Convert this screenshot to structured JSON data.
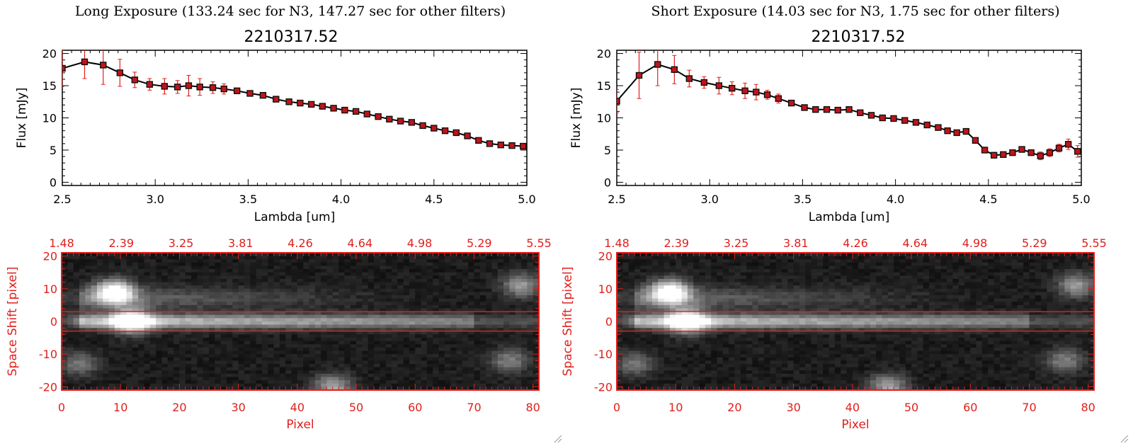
{
  "panels": [
    {
      "key": "long",
      "title": "Long Exposure (133.24 sec for N3, 147.27 sec for other filters)",
      "object_id": "2210317.52"
    },
    {
      "key": "short",
      "title": "Short Exposure (14.03 sec for N3, 1.75 sec for other filters)",
      "object_id": "2210317.52"
    }
  ],
  "chart_data": [
    {
      "type": "line",
      "panel": "long",
      "title": "2210317.52",
      "xlabel": "Lambda [um]",
      "ylabel": "Flux [mJy]",
      "xlim": [
        2.5,
        5.0
      ],
      "ylim": [
        -0.5,
        20.5
      ],
      "xticks": [
        "2.5",
        "3.0",
        "3.5",
        "4.0",
        "4.5",
        "5.0"
      ],
      "yticks": [
        "0",
        "5",
        "10",
        "15",
        "20"
      ],
      "line_color": "#000000",
      "marker_color": "#c0141a",
      "errorbar_color": "#e0201c",
      "points": [
        {
          "x": 2.5,
          "y": 17.7,
          "err": 2.8
        },
        {
          "x": 2.62,
          "y": 18.7,
          "err": 2.6
        },
        {
          "x": 2.72,
          "y": 18.2,
          "err": 3.0
        },
        {
          "x": 2.81,
          "y": 17.0,
          "err": 2.1
        },
        {
          "x": 2.89,
          "y": 15.9,
          "err": 1.2
        },
        {
          "x": 2.97,
          "y": 15.2,
          "err": 0.9
        },
        {
          "x": 3.05,
          "y": 14.9,
          "err": 1.2
        },
        {
          "x": 3.12,
          "y": 14.8,
          "err": 1.0
        },
        {
          "x": 3.18,
          "y": 15.0,
          "err": 1.6
        },
        {
          "x": 3.24,
          "y": 14.8,
          "err": 1.3
        },
        {
          "x": 3.31,
          "y": 14.7,
          "err": 0.9
        },
        {
          "x": 3.37,
          "y": 14.5,
          "err": 0.8
        },
        {
          "x": 3.44,
          "y": 14.2,
          "err": 0.4
        },
        {
          "x": 3.51,
          "y": 13.8,
          "err": 0.3
        },
        {
          "x": 3.58,
          "y": 13.5,
          "err": 0.3
        },
        {
          "x": 3.65,
          "y": 12.9,
          "err": 0.2
        },
        {
          "x": 3.72,
          "y": 12.5,
          "err": 0.2
        },
        {
          "x": 3.78,
          "y": 12.3,
          "err": 0.2
        },
        {
          "x": 3.84,
          "y": 12.1,
          "err": 0.2
        },
        {
          "x": 3.9,
          "y": 11.8,
          "err": 0.2
        },
        {
          "x": 3.96,
          "y": 11.5,
          "err": 0.2
        },
        {
          "x": 4.02,
          "y": 11.2,
          "err": 0.2
        },
        {
          "x": 4.08,
          "y": 11.0,
          "err": 0.2
        },
        {
          "x": 4.14,
          "y": 10.6,
          "err": 0.2
        },
        {
          "x": 4.2,
          "y": 10.2,
          "err": 0.2
        },
        {
          "x": 4.26,
          "y": 9.8,
          "err": 0.2
        },
        {
          "x": 4.32,
          "y": 9.5,
          "err": 0.2
        },
        {
          "x": 4.38,
          "y": 9.3,
          "err": 0.2
        },
        {
          "x": 4.44,
          "y": 8.8,
          "err": 0.2
        },
        {
          "x": 4.5,
          "y": 8.4,
          "err": 0.2
        },
        {
          "x": 4.56,
          "y": 8.0,
          "err": 0.2
        },
        {
          "x": 4.62,
          "y": 7.7,
          "err": 0.2
        },
        {
          "x": 4.68,
          "y": 7.2,
          "err": 0.2
        },
        {
          "x": 4.74,
          "y": 6.5,
          "err": 0.2
        },
        {
          "x": 4.8,
          "y": 6.0,
          "err": 0.2
        },
        {
          "x": 4.86,
          "y": 5.8,
          "err": 0.2
        },
        {
          "x": 4.92,
          "y": 5.7,
          "err": 0.2
        },
        {
          "x": 4.98,
          "y": 5.6,
          "err": 0.2
        }
      ]
    },
    {
      "type": "line",
      "panel": "short",
      "title": "2210317.52",
      "xlabel": "Lambda [um]",
      "ylabel": "Flux [mJy]",
      "xlim": [
        2.5,
        5.0
      ],
      "ylim": [
        -0.5,
        20.5
      ],
      "xticks": [
        "2.5",
        "3.0",
        "3.5",
        "4.0",
        "4.5",
        "5.0"
      ],
      "yticks": [
        "0",
        "5",
        "10",
        "15",
        "20"
      ],
      "line_color": "#000000",
      "marker_color": "#c0141a",
      "errorbar_color": "#e0201c",
      "points": [
        {
          "x": 2.5,
          "y": 12.6,
          "err": 1.8
        },
        {
          "x": 2.62,
          "y": 16.6,
          "err": 3.6
        },
        {
          "x": 2.72,
          "y": 18.3,
          "err": 3.3
        },
        {
          "x": 2.81,
          "y": 17.5,
          "err": 2.2
        },
        {
          "x": 2.89,
          "y": 16.1,
          "err": 1.3
        },
        {
          "x": 2.97,
          "y": 15.5,
          "err": 0.9
        },
        {
          "x": 3.05,
          "y": 15.0,
          "err": 1.3
        },
        {
          "x": 3.12,
          "y": 14.6,
          "err": 1.0
        },
        {
          "x": 3.19,
          "y": 14.2,
          "err": 1.2
        },
        {
          "x": 3.25,
          "y": 14.0,
          "err": 1.2
        },
        {
          "x": 3.31,
          "y": 13.6,
          "err": 0.7
        },
        {
          "x": 3.37,
          "y": 13.0,
          "err": 0.7
        },
        {
          "x": 3.44,
          "y": 12.3,
          "err": 0.4
        },
        {
          "x": 3.51,
          "y": 11.6,
          "err": 0.3
        },
        {
          "x": 3.57,
          "y": 11.3,
          "err": 0.3
        },
        {
          "x": 3.63,
          "y": 11.3,
          "err": 0.3
        },
        {
          "x": 3.69,
          "y": 11.2,
          "err": 0.3
        },
        {
          "x": 3.75,
          "y": 11.3,
          "err": 0.3
        },
        {
          "x": 3.81,
          "y": 10.8,
          "err": 0.3
        },
        {
          "x": 3.87,
          "y": 10.4,
          "err": 0.3
        },
        {
          "x": 3.93,
          "y": 10.0,
          "err": 0.3
        },
        {
          "x": 3.99,
          "y": 9.9,
          "err": 0.3
        },
        {
          "x": 4.05,
          "y": 9.6,
          "err": 0.3
        },
        {
          "x": 4.11,
          "y": 9.3,
          "err": 0.3
        },
        {
          "x": 4.17,
          "y": 8.9,
          "err": 0.3
        },
        {
          "x": 4.23,
          "y": 8.5,
          "err": 0.3
        },
        {
          "x": 4.28,
          "y": 8.0,
          "err": 0.3
        },
        {
          "x": 4.33,
          "y": 7.7,
          "err": 0.3
        },
        {
          "x": 4.38,
          "y": 7.9,
          "err": 0.3
        },
        {
          "x": 4.43,
          "y": 6.5,
          "err": 0.4
        },
        {
          "x": 4.48,
          "y": 5.0,
          "err": 0.4
        },
        {
          "x": 4.53,
          "y": 4.2,
          "err": 0.5
        },
        {
          "x": 4.58,
          "y": 4.3,
          "err": 0.5
        },
        {
          "x": 4.63,
          "y": 4.6,
          "err": 0.5
        },
        {
          "x": 4.68,
          "y": 5.1,
          "err": 0.5
        },
        {
          "x": 4.73,
          "y": 4.6,
          "err": 0.5
        },
        {
          "x": 4.78,
          "y": 4.1,
          "err": 0.6
        },
        {
          "x": 4.83,
          "y": 4.6,
          "err": 0.6
        },
        {
          "x": 4.88,
          "y": 5.3,
          "err": 0.6
        },
        {
          "x": 4.93,
          "y": 5.9,
          "err": 0.8
        },
        {
          "x": 4.98,
          "y": 4.8,
          "err": 0.9
        }
      ]
    },
    {
      "type": "heatmap",
      "panel": "long",
      "xlabel": "Pixel",
      "ylabel": "Space Shift [pixel]",
      "xlim": [
        0,
        81
      ],
      "ylim": [
        -21,
        21
      ],
      "xticks": [
        "0",
        "10",
        "20",
        "30",
        "40",
        "50",
        "60",
        "70",
        "80"
      ],
      "yticks": [
        "-20",
        "-10",
        "0",
        "10",
        "20"
      ],
      "top_ticks": [
        "1.48",
        "2.39",
        "3.25",
        "3.81",
        "4.26",
        "4.64",
        "4.98",
        "5.29",
        "5.55"
      ],
      "aperture_lines_y": [
        3,
        -3
      ],
      "frame_color": "#e0201c",
      "colormap": "grayscale",
      "sources": [
        {
          "x": 9,
          "y": 9,
          "peak": 1.0
        },
        {
          "x": 12,
          "y": 0,
          "peak": 0.9
        },
        {
          "x": 78,
          "y": 11,
          "peak": 0.5
        },
        {
          "x": 76,
          "y": -12,
          "peak": 0.4
        },
        {
          "x": 46,
          "y": -20,
          "peak": 0.55
        },
        {
          "x": 3,
          "y": -13,
          "peak": 0.35
        }
      ]
    },
    {
      "type": "heatmap",
      "panel": "short",
      "xlabel": "Pixel",
      "ylabel": "Space Shift [pixel]",
      "xlim": [
        0,
        81
      ],
      "ylim": [
        -21,
        21
      ],
      "xticks": [
        "0",
        "10",
        "20",
        "30",
        "40",
        "50",
        "60",
        "70",
        "80"
      ],
      "yticks": [
        "-20",
        "-10",
        "0",
        "10",
        "20"
      ],
      "top_ticks": [
        "1.48",
        "2.39",
        "3.25",
        "3.81",
        "4.26",
        "4.64",
        "4.98",
        "5.29",
        "5.55"
      ],
      "aperture_lines_y": [
        3,
        -3
      ],
      "frame_color": "#e0201c",
      "colormap": "grayscale",
      "sources": [
        {
          "x": 9,
          "y": 9,
          "peak": 1.0
        },
        {
          "x": 12,
          "y": 0,
          "peak": 0.9
        },
        {
          "x": 78,
          "y": 11,
          "peak": 0.5
        },
        {
          "x": 76,
          "y": -12,
          "peak": 0.4
        },
        {
          "x": 46,
          "y": -20,
          "peak": 0.55
        },
        {
          "x": 3,
          "y": -13,
          "peak": 0.35
        }
      ]
    }
  ]
}
